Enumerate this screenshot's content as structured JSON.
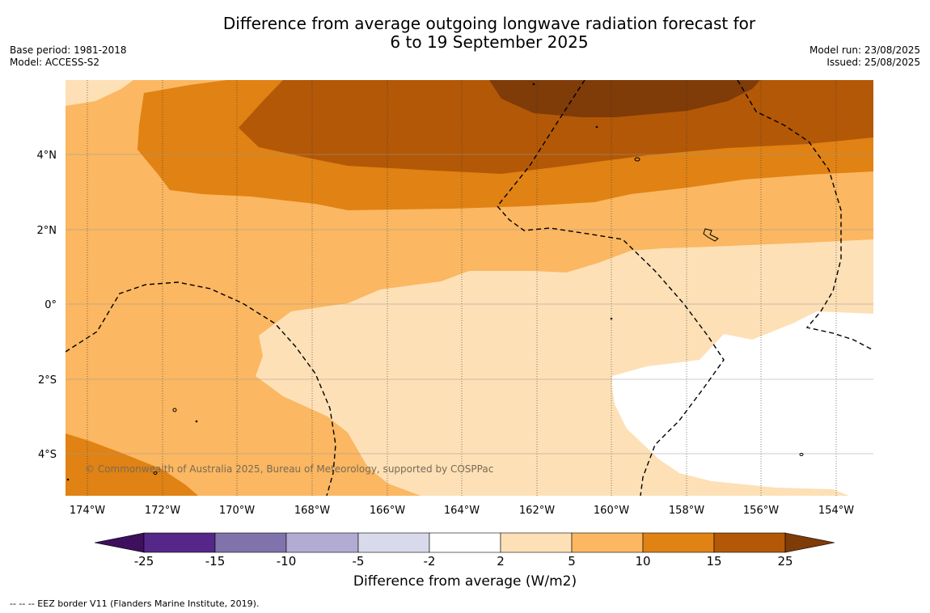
{
  "title": {
    "line1": "Difference from average outgoing longwave radiation forecast for",
    "line2": "6 to 19 September 2025"
  },
  "info_left": {
    "base_period": "Base period: 1981-2018",
    "model": "Model: ACCESS-S2"
  },
  "info_right": {
    "model_run": "Model run: 23/08/2025",
    "issued": "Issued: 25/08/2025"
  },
  "map": {
    "longitude_labels": [
      "174°W",
      "172°W",
      "170°W",
      "168°W",
      "166°W",
      "164°W",
      "162°W",
      "160°W",
      "158°W",
      "156°W",
      "154°W"
    ],
    "latitude_labels": [
      "4°N",
      "2°N",
      "0°",
      "2°S",
      "4°S"
    ],
    "copyright": "© Commonwealth of Australia 2025, Bureau of Meteorology, supported by COSPPac"
  },
  "colorbar": {
    "ticks": [
      "-25",
      "-15",
      "-10",
      "-5",
      "-2",
      "2",
      "5",
      "10",
      "15",
      "25"
    ],
    "colors": {
      "lt_-25": "#3d0f5c",
      "-25_-15": "#542788",
      "-15_-10": "#8073ac",
      "-10_-5": "#b2abd2",
      "-5_-2": "#d8daeb",
      "-2_2": "#ffffff",
      "2_5": "#fde0b6",
      "5_10": "#fbb761",
      "10_15": "#e08214",
      "15_25": "#b35806",
      "gt_25": "#7f3b08"
    },
    "label": "Difference from average (W/m2)"
  },
  "footnote": "--  --  -- EEZ border V11 (Flanders Marine Institute, 2019)."
}
